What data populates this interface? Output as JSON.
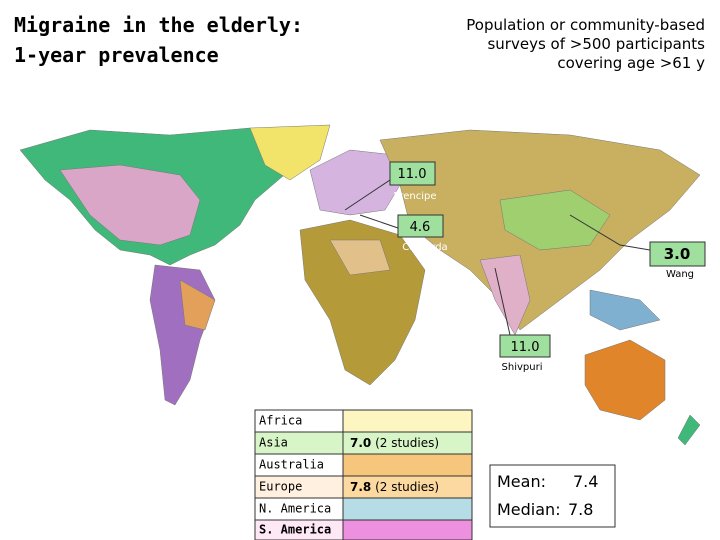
{
  "title": [
    "Migraine in the elderly:",
    "1-year prevalence"
  ],
  "subtitle": [
    "Population or community-based",
    "surveys of >500 participants",
    "covering age >61 y"
  ],
  "callouts": [
    {
      "value": "11.0",
      "author": "Prencipe"
    },
    {
      "value": "4.6",
      "author": "Camarda"
    },
    {
      "value": "3.0",
      "author": "Wang"
    },
    {
      "value": "11.0",
      "author": "Shivpuri"
    }
  ],
  "table": {
    "rows": [
      {
        "region": "Africa"
      },
      {
        "region": "Asia",
        "value": "7.0",
        "note": "(2 studies)"
      },
      {
        "region": "Australia"
      },
      {
        "region": "Europe",
        "value": "7.8",
        "note": "(2 studies)"
      },
      {
        "region": "N. America"
      },
      {
        "region": "S. America"
      }
    ]
  },
  "summary": {
    "mean_label": "Mean:",
    "mean": "7.4",
    "median_label": "Median:",
    "median": "7.8"
  }
}
